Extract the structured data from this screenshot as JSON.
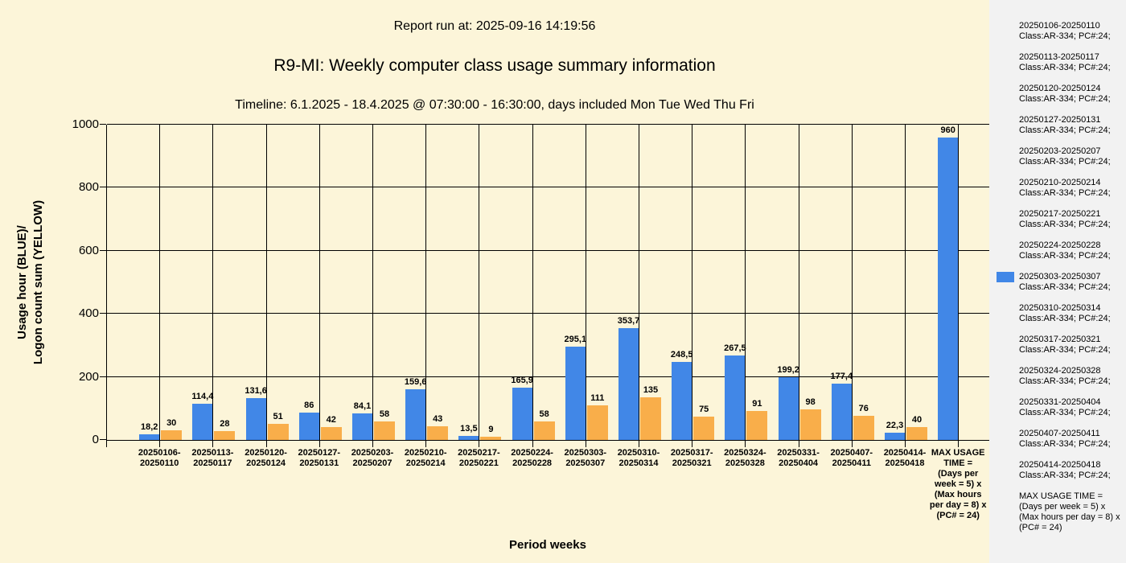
{
  "header": {
    "report_run": "Report run at: 2025-09-16 14:19:56",
    "title": "R9-MI: Weekly computer class usage summary information",
    "timeline": "Timeline:  6.1.2025  - 18.4.2025  @  07:30:00 -  16:30:00, days included Mon Tue Wed Thu Fri"
  },
  "axes": {
    "y_title_line1": "Usage hour (BLUE)/",
    "y_title_line2": "Logon count sum (YELLOW)",
    "x_title": "Period weeks"
  },
  "colors": {
    "background": "#FCF5D9",
    "legend_background": "#F2F2F2",
    "usage_blue": "#4187E7",
    "logon_yellow": "#F9AE4A",
    "grid": "#000000"
  },
  "chart_data": {
    "type": "bar",
    "title": "R9-MI: Weekly computer class usage summary information",
    "xlabel": "Period weeks",
    "ylabel": "Usage hour (BLUE)/ Logon count sum (YELLOW)",
    "ylim": [
      0,
      1000
    ],
    "yticks": [
      0,
      200,
      400,
      600,
      800,
      1000
    ],
    "grid": true,
    "legend_position": "right",
    "categories": [
      "20250106-\n20250110",
      "20250113-\n20250117",
      "20250120-\n20250124",
      "20250127-\n20250131",
      "20250203-\n20250207",
      "20250210-\n20250214",
      "20250217-\n20250221",
      "20250224-\n20250228",
      "20250303-\n20250307",
      "20250310-\n20250314",
      "20250317-\n20250321",
      "20250324-\n20250328",
      "20250331-\n20250404",
      "20250407-\n20250411",
      "20250414-\n20250418",
      "MAX USAGE\nTIME =\n(Days per\nweek = 5) x\n(Max hours\nper day = 8) x\n(PC# = 24)"
    ],
    "series": [
      {
        "name": "Usage hour (BLUE)",
        "color": "#4187E7",
        "values": [
          18.2,
          114.4,
          131.6,
          86,
          84.1,
          159.6,
          13.5,
          165.9,
          295.1,
          353.7,
          248.5,
          267.5,
          199.2,
          177.4,
          22.3,
          960
        ],
        "labels": [
          "18,2",
          "114,4",
          "131,6",
          "86",
          "84,1",
          "159,6",
          "13,5",
          "165,9",
          "295,1",
          "353,7",
          "248,5",
          "267,5",
          "199,2",
          "177,4",
          "22,3",
          "960"
        ]
      },
      {
        "name": "Logon count sum (YELLOW)",
        "color": "#F9AE4A",
        "values": [
          30,
          28,
          51,
          42,
          58,
          43,
          9,
          58,
          111,
          135,
          75,
          91,
          98,
          76,
          40,
          null
        ],
        "labels": [
          "30",
          "28",
          "51",
          "42",
          "58",
          "43",
          "9",
          "58",
          "111",
          "135",
          "75",
          "91",
          "98",
          "76",
          "40",
          ""
        ]
      }
    ]
  },
  "legend": {
    "swatch_color": "#4187E7",
    "entries": [
      {
        "range": "20250106-20250110",
        "detail": "Class:AR-334; PC#:24;",
        "swatch": false
      },
      {
        "range": "20250113-20250117",
        "detail": "Class:AR-334; PC#:24;",
        "swatch": false
      },
      {
        "range": "20250120-20250124",
        "detail": "Class:AR-334; PC#:24;",
        "swatch": false
      },
      {
        "range": "20250127-20250131",
        "detail": "Class:AR-334; PC#:24;",
        "swatch": false
      },
      {
        "range": "20250203-20250207",
        "detail": "Class:AR-334; PC#:24;",
        "swatch": false
      },
      {
        "range": "20250210-20250214",
        "detail": "Class:AR-334; PC#:24;",
        "swatch": false
      },
      {
        "range": "20250217-20250221",
        "detail": "Class:AR-334; PC#:24;",
        "swatch": false
      },
      {
        "range": "20250224-20250228",
        "detail": "Class:AR-334; PC#:24;",
        "swatch": false
      },
      {
        "range": "20250303-20250307",
        "detail": "Class:AR-334; PC#:24;",
        "swatch": true
      },
      {
        "range": "20250310-20250314",
        "detail": "Class:AR-334; PC#:24;",
        "swatch": false
      },
      {
        "range": "20250317-20250321",
        "detail": "Class:AR-334; PC#:24;",
        "swatch": false
      },
      {
        "range": "20250324-20250328",
        "detail": "Class:AR-334; PC#:24;",
        "swatch": false
      },
      {
        "range": "20250331-20250404",
        "detail": "Class:AR-334; PC#:24;",
        "swatch": false
      },
      {
        "range": "20250407-20250411",
        "detail": "Class:AR-334; PC#:24;",
        "swatch": false
      },
      {
        "range": "20250414-20250418",
        "detail": "Class:AR-334; PC#:24;",
        "swatch": false
      },
      {
        "range": "MAX USAGE TIME =",
        "detail": " (Days per week = 5) x (Max hours per day = 8) x (PC# = 24)",
        "swatch": false
      }
    ]
  }
}
